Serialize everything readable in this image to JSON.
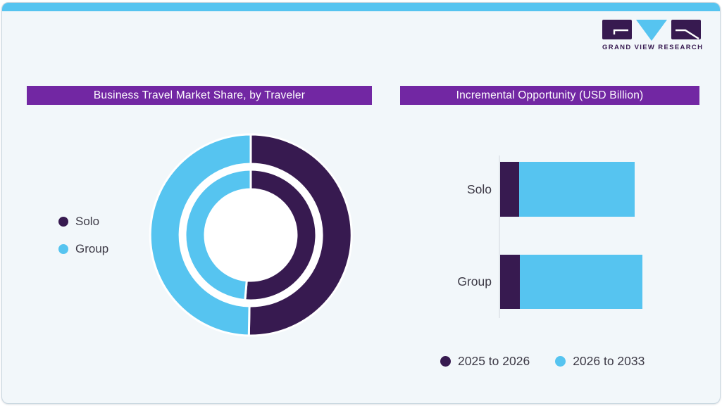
{
  "logo": {
    "name": "Grand View Research",
    "text": "GRAND VIEW RESEARCH"
  },
  "colors": {
    "dark_purple": "#371A50",
    "light_blue": "#56C4F0",
    "title_bar_purple": "#7227A3",
    "card_bg": "#F2F7FA",
    "card_border": "#C9D7E0",
    "label_text": "#3D3A46",
    "axis_line": "#E2E7EC",
    "white": "#FFFFFF"
  },
  "left_panel": {
    "title": "Business Travel Market Share, by Traveler",
    "legend": [
      {
        "label": "Solo",
        "color_key": "dark_purple"
      },
      {
        "label": "Group",
        "color_key": "light_blue"
      }
    ]
  },
  "right_panel": {
    "title": "Incremental Opportunity (USD Billion)",
    "legend": [
      {
        "label": "2025 to 2026",
        "color_key": "dark_purple"
      },
      {
        "label": "2026 to 2033",
        "color_key": "light_blue"
      }
    ]
  },
  "chart_data": [
    {
      "type": "pie",
      "subtype": "double-ring-donut",
      "title": "Business Travel Market Share, by Traveler",
      "legend_position": "left",
      "rings": [
        {
          "name": "outer-ring",
          "segments": [
            {
              "label": "Solo",
              "pct": 50.3,
              "color_key": "dark_purple"
            },
            {
              "label": "Group",
              "pct": 49.7,
              "color_key": "light_blue"
            }
          ]
        },
        {
          "name": "inner-ring",
          "segments": [
            {
              "label": "Solo",
              "pct": 51.4,
              "color_key": "dark_purple"
            },
            {
              "label": "Group",
              "pct": 48.6,
              "color_key": "light_blue"
            }
          ]
        }
      ],
      "note": "No numeric labels shown; segment shares estimated from arc angles (Solo starts at 12 o'clock clockwise)"
    },
    {
      "type": "bar",
      "orientation": "horizontal",
      "stacked": true,
      "title": "Incremental Opportunity (USD Billion)",
      "categories": [
        "Solo",
        "Group"
      ],
      "series": [
        {
          "name": "2025 to 2026",
          "color_key": "dark_purple",
          "values": [
            27,
            28
          ]
        },
        {
          "name": "2026 to 2033",
          "color_key": "light_blue",
          "values": [
            164,
            174
          ]
        }
      ],
      "value_units": "relative (axis unlabeled)",
      "legend_position": "bottom",
      "grid": false
    }
  ]
}
